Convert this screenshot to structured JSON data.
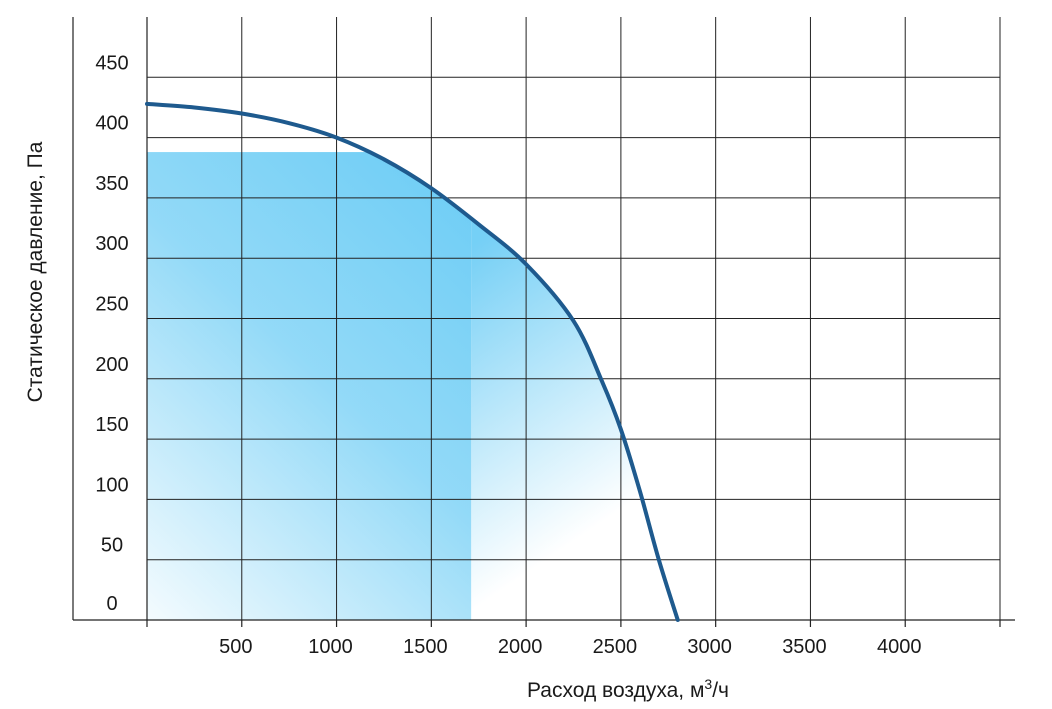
{
  "chart_data": {
    "type": "line",
    "title": "",
    "xlabel": "Расход воздуха, м",
    "xlabel_sup": "3",
    "xlabel_unit_tail": "/ч",
    "ylabel": "Статическое давление, Па",
    "xlim": [
      0,
      4500
    ],
    "ylim": [
      0,
      500
    ],
    "x_ticks": [
      500,
      1000,
      1500,
      2000,
      2500,
      3000,
      3500,
      4000
    ],
    "y_ticks": [
      0,
      50,
      100,
      150,
      200,
      250,
      300,
      350,
      400,
      450
    ],
    "grid": true,
    "legend": "none",
    "series": [
      {
        "color": "#1e5a8e",
        "x": [
          0,
          250,
          500,
          750,
          1000,
          1250,
          1500,
          1750,
          2000,
          2250,
          2400,
          2500,
          2600,
          2700,
          2800
        ],
        "y": [
          428,
          425,
          420,
          412,
          400,
          382,
          358,
          328,
          295,
          248,
          198,
          158,
          107,
          50,
          0
        ]
      }
    ],
    "shaded_region": {
      "color": "#6ecdf5",
      "rect_x": [
        0,
        1710
      ],
      "rect_y_top": 388
    }
  }
}
